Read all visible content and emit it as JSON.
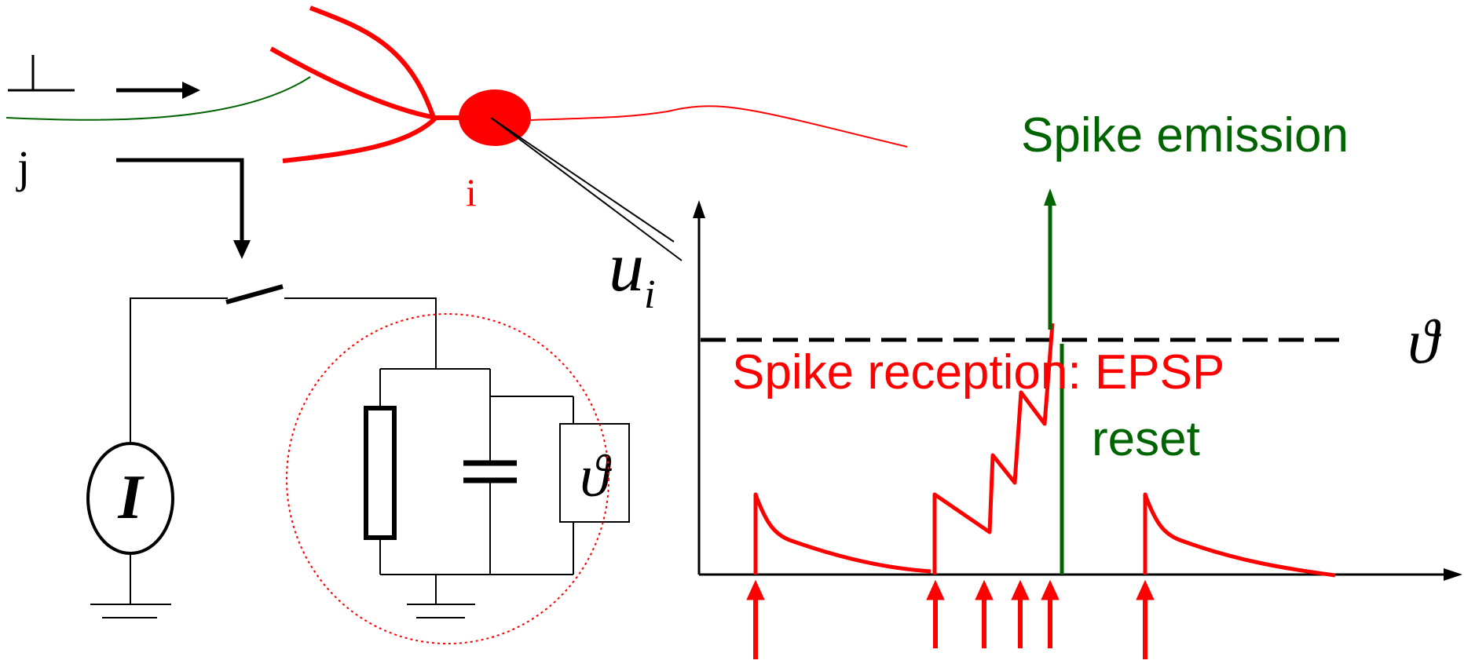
{
  "neuron": {
    "presynaptic_label": "j",
    "postsynaptic_label": "i"
  },
  "circuit": {
    "current_source_symbol": "I",
    "threshold_box_symbol": "ϑ"
  },
  "plot": {
    "membrane_symbol": "u",
    "membrane_subscript": "i",
    "threshold_symbol": "ϑ",
    "spike_emission_label": "Spike emission",
    "spike_reception_label": "Spike reception: EPSP",
    "reset_label": "reset"
  },
  "colors": {
    "neuron": "#ff0000",
    "axon_in": "#006400",
    "emission": "#006400",
    "epsp": "#ff0000",
    "text": "#000000"
  }
}
